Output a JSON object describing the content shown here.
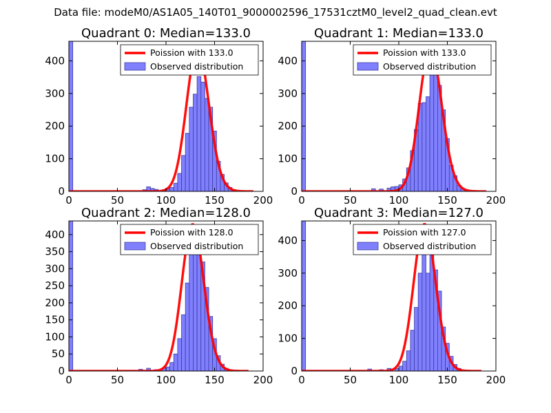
{
  "figure": {
    "suptitle": "Data file: modeM0/AS1A05_140T01_9000002596_17531cztM0_level2_quad_clean.evt"
  },
  "colors": {
    "bar_fill": "#8080ff",
    "bar_edge": "#3a3aa0",
    "poisson_line": "#ff0000",
    "axes": "#000000"
  },
  "chart_data": [
    {
      "type": "bar",
      "title": "Quadrant 0: Median=133.0",
      "median": 133.0,
      "xlim": [
        0,
        200
      ],
      "ylim": [
        0,
        460
      ],
      "xticks": [
        0,
        50,
        100,
        150,
        200
      ],
      "yticks": [
        0,
        100,
        200,
        300,
        400
      ],
      "legend": {
        "placement": "top-right",
        "line_label": "Poission with 133.0",
        "bar_label": "Observed distribution"
      },
      "bin_width": 4,
      "bars": [
        [
          0,
          460
        ],
        [
          76,
          5
        ],
        [
          80,
          14
        ],
        [
          84,
          9
        ],
        [
          88,
          6
        ],
        [
          96,
          5
        ],
        [
          100,
          8
        ],
        [
          104,
          12
        ],
        [
          108,
          25
        ],
        [
          112,
          55
        ],
        [
          116,
          110
        ],
        [
          120,
          178
        ],
        [
          124,
          258
        ],
        [
          128,
          298
        ],
        [
          132,
          352
        ],
        [
          136,
          335
        ],
        [
          140,
          285
        ],
        [
          144,
          258
        ],
        [
          148,
          185
        ],
        [
          152,
          92
        ],
        [
          156,
          52
        ],
        [
          160,
          26
        ],
        [
          164,
          12
        ],
        [
          168,
          5
        ]
      ],
      "poisson_lambda": 133.0,
      "poisson_peak": 440,
      "poisson_xrange": [
        0,
        190
      ]
    },
    {
      "type": "bar",
      "title": "Quadrant 1: Median=133.0",
      "median": 133.0,
      "xlim": [
        0,
        200
      ],
      "ylim": [
        0,
        460
      ],
      "xticks": [
        0,
        50,
        100,
        150,
        200
      ],
      "yticks": [
        0,
        100,
        200,
        300,
        400
      ],
      "legend": {
        "placement": "top-right",
        "line_label": "Poission with 133.0",
        "bar_label": "Observed distribution"
      },
      "bin_width": 4,
      "bars": [
        [
          0,
          460
        ],
        [
          72,
          8
        ],
        [
          80,
          7
        ],
        [
          88,
          10
        ],
        [
          92,
          14
        ],
        [
          96,
          15
        ],
        [
          100,
          20
        ],
        [
          104,
          38
        ],
        [
          108,
          72
        ],
        [
          112,
          125
        ],
        [
          116,
          190
        ],
        [
          120,
          270
        ],
        [
          124,
          272
        ],
        [
          128,
          290
        ],
        [
          132,
          430
        ],
        [
          136,
          380
        ],
        [
          140,
          325
        ],
        [
          144,
          250
        ],
        [
          148,
          162
        ],
        [
          152,
          80
        ],
        [
          156,
          48
        ],
        [
          160,
          18
        ],
        [
          164,
          8
        ]
      ],
      "poisson_lambda": 133.0,
      "poisson_peak": 440,
      "poisson_xrange": [
        0,
        190
      ]
    },
    {
      "type": "bar",
      "title": "Quadrant 2: Median=128.0",
      "median": 128.0,
      "xlim": [
        0,
        200
      ],
      "ylim": [
        0,
        440
      ],
      "xticks": [
        0,
        50,
        100,
        150,
        200
      ],
      "yticks": [
        0,
        50,
        100,
        150,
        200,
        250,
        300,
        350,
        400
      ],
      "legend": {
        "placement": "top-right",
        "line_label": "Poission with 128.0",
        "bar_label": "Observed distribution"
      },
      "bin_width": 4,
      "bars": [
        [
          0,
          440
        ],
        [
          72,
          5
        ],
        [
          80,
          8
        ],
        [
          88,
          4
        ],
        [
          96,
          9
        ],
        [
          100,
          12
        ],
        [
          104,
          25
        ],
        [
          108,
          50
        ],
        [
          112,
          95
        ],
        [
          116,
          165
        ],
        [
          120,
          258
        ],
        [
          124,
          350
        ],
        [
          128,
          392
        ],
        [
          132,
          380
        ],
        [
          136,
          320
        ],
        [
          140,
          245
        ],
        [
          144,
          160
        ],
        [
          148,
          95
        ],
        [
          152,
          45
        ],
        [
          156,
          20
        ],
        [
          160,
          8
        ]
      ],
      "poisson_lambda": 128.0,
      "poisson_peak": 430,
      "poisson_xrange": [
        0,
        185
      ]
    },
    {
      "type": "bar",
      "title": "Quadrant 3: Median=127.0",
      "median": 127.0,
      "xlim": [
        0,
        200
      ],
      "ylim": [
        0,
        460
      ],
      "xticks": [
        0,
        50,
        100,
        150,
        200
      ],
      "yticks": [
        0,
        100,
        200,
        300,
        400
      ],
      "legend": {
        "placement": "top-right",
        "line_label": "Poission with 127.0",
        "bar_label": "Observed distribution"
      },
      "bin_width": 4,
      "bars": [
        [
          0,
          460
        ],
        [
          68,
          6
        ],
        [
          80,
          4
        ],
        [
          88,
          8
        ],
        [
          96,
          8
        ],
        [
          100,
          15
        ],
        [
          104,
          30
        ],
        [
          108,
          62
        ],
        [
          112,
          125
        ],
        [
          116,
          195
        ],
        [
          120,
          300
        ],
        [
          124,
          360
        ],
        [
          128,
          300
        ],
        [
          132,
          365
        ],
        [
          136,
          310
        ],
        [
          140,
          245
        ],
        [
          144,
          135
        ],
        [
          148,
          85
        ],
        [
          152,
          45
        ],
        [
          156,
          20
        ],
        [
          160,
          8
        ]
      ],
      "poisson_lambda": 127.0,
      "poisson_peak": 450,
      "poisson_xrange": [
        0,
        185
      ]
    }
  ]
}
